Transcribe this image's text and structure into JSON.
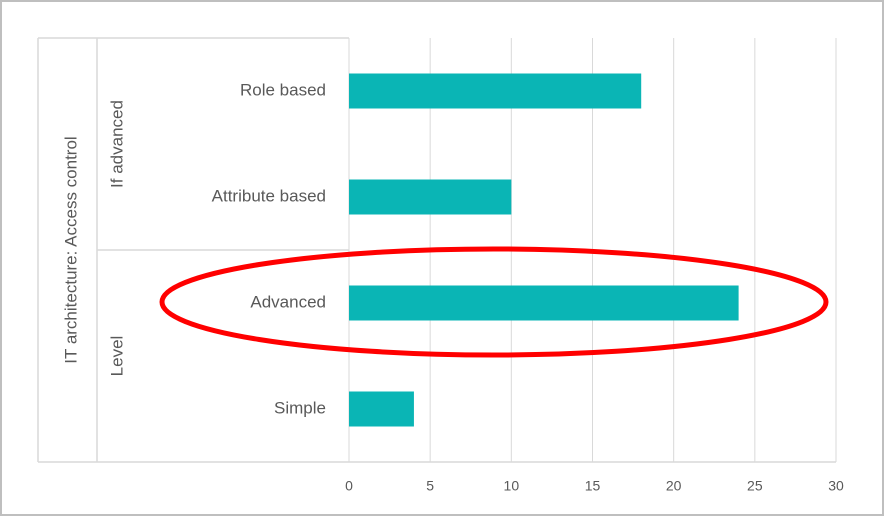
{
  "chart_data": {
    "type": "bar",
    "orientation": "horizontal",
    "axis_label": "IT architecture: Access control",
    "groups": [
      {
        "name": "If advanced",
        "categories": [
          "Role based",
          "Attribute based"
        ],
        "values": [
          18,
          10
        ]
      },
      {
        "name": "Level",
        "categories": [
          "Advanced",
          "Simple"
        ],
        "values": [
          24,
          4
        ]
      }
    ],
    "color": "#0ab5b5",
    "xlim": [
      0,
      30
    ],
    "xticks": [
      0,
      5,
      10,
      15,
      20,
      25,
      30
    ],
    "grid": true
  }
}
